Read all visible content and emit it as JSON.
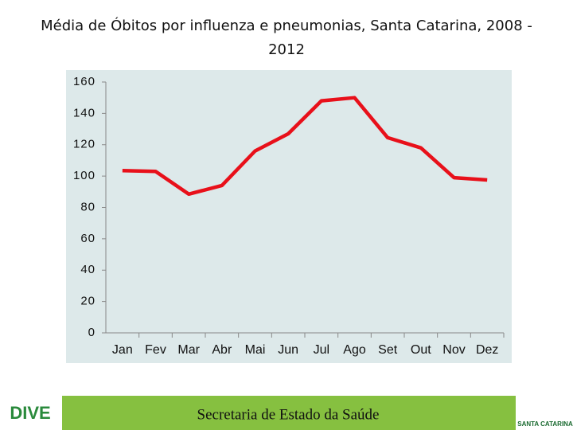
{
  "chart_data": {
    "type": "line",
    "title": "Média de Óbitos por influenza e pneumonias, Santa Catarina, 2008 - 2012",
    "categories": [
      "Jan",
      "Fev",
      "Mar",
      "Abr",
      "Mai",
      "Jun",
      "Jul",
      "Ago",
      "Set",
      "Out",
      "Nov",
      "Dez"
    ],
    "series": [
      {
        "name": "Média de Óbitos",
        "color": "#e8101a",
        "values": [
          103.5,
          103,
          88.5,
          94,
          116,
          127,
          148,
          150,
          124.5,
          118,
          99,
          97.5
        ]
      }
    ],
    "ylim": [
      0,
      160
    ],
    "yticks": [
      0,
      20,
      40,
      60,
      80,
      100,
      120,
      140,
      160
    ],
    "grid": false
  },
  "footer": {
    "text": "Secretaria de Estado da Saúde",
    "left_logo": "DIVE",
    "right_logo": "SANTA CATARINA"
  }
}
